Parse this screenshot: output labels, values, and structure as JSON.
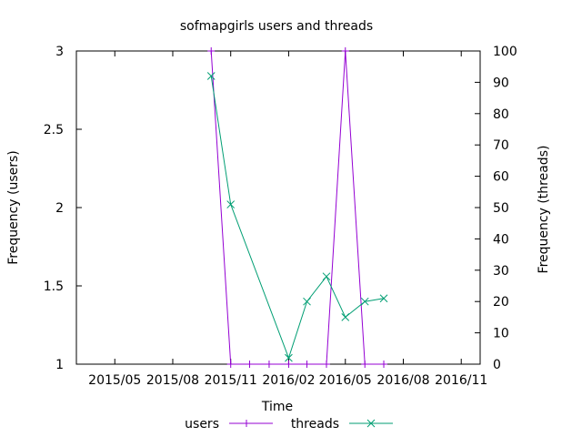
{
  "chart_data": {
    "type": "line",
    "title": "sofmapgirls users and threads",
    "xlabel": "Time",
    "ylabel": "Frequency (users)",
    "y2label": "Frequency (threads)",
    "xlim": [
      "2015-03-01",
      "2016-12-01"
    ],
    "ylim": [
      1,
      3
    ],
    "y2lim": [
      0,
      100
    ],
    "x_ticks": [
      "2015-05-01",
      "2015-08-01",
      "2015-11-01",
      "2016-02-01",
      "2016-05-01",
      "2016-08-01",
      "2016-11-01"
    ],
    "x_tick_labels": [
      "2015/05",
      "2015/08",
      "2015/11",
      "2016/02",
      "2016/05",
      "2016/08",
      "2016/11"
    ],
    "y_ticks": [
      1,
      1.5,
      2,
      2.5,
      3
    ],
    "y_tick_labels": [
      "1",
      "1.5",
      "2",
      "2.5",
      "3"
    ],
    "y2_ticks": [
      0,
      10,
      20,
      30,
      40,
      50,
      60,
      70,
      80,
      90,
      100
    ],
    "y2_tick_labels": [
      "0",
      "10",
      "20",
      "30",
      "40",
      "50",
      "60",
      "70",
      "80",
      "90",
      "100"
    ],
    "legend_position": "bottom",
    "series": [
      {
        "name": "users",
        "axis": "y",
        "color": "#9400d3",
        "marker": "plus",
        "x": [
          "2015-10-01",
          "2015-11-01",
          "2015-12-01",
          "2016-01-01",
          "2016-02-01",
          "2016-03-01",
          "2016-04-01",
          "2016-05-01",
          "2016-06-01",
          "2016-07-01"
        ],
        "values": [
          3,
          1,
          1,
          1,
          1,
          1,
          1,
          3,
          1,
          1
        ]
      },
      {
        "name": "threads",
        "axis": "y2",
        "color": "#009e73",
        "marker": "cross",
        "x": [
          "2015-10-01",
          "2015-11-01",
          "2016-02-01",
          "2016-03-01",
          "2016-04-01",
          "2016-05-01",
          "2016-06-01",
          "2016-07-01"
        ],
        "values": [
          92,
          51,
          2,
          20,
          28,
          15,
          20,
          21
        ]
      }
    ]
  }
}
